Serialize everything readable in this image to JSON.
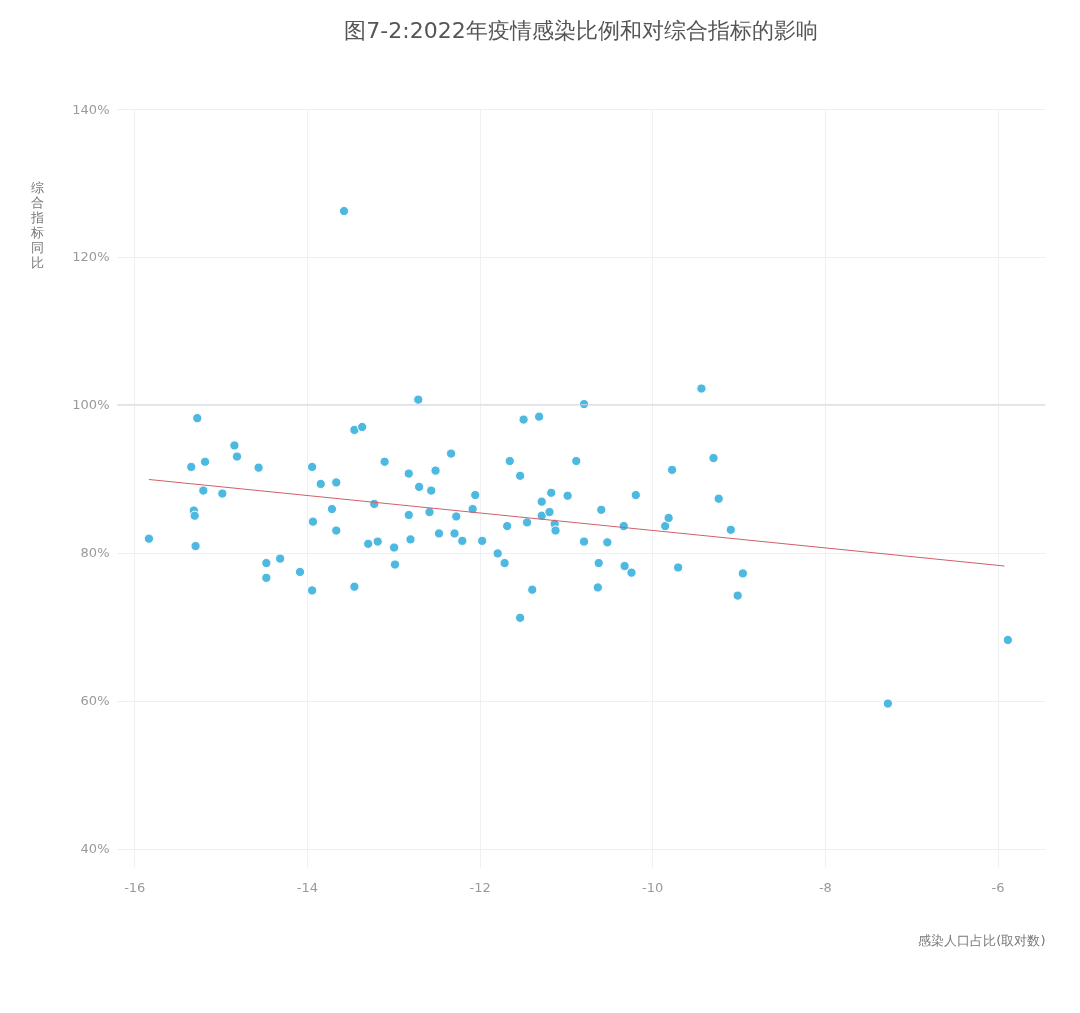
{
  "chart_data": {
    "type": "scatter",
    "title": "图7-2:2022年疫情感染比例和对综合指标的影响",
    "xlabel": "感染人口占比(取对数)",
    "ylabel": "综合指标同比",
    "xlim": [
      -16.2,
      -5.45
    ],
    "xticks": [
      -16,
      -14,
      -12,
      -10,
      -8,
      -6
    ],
    "ylim": [
      37.5,
      140
    ],
    "yticks": [
      {
        "value": 40,
        "label": "40%"
      },
      {
        "value": 60,
        "label": "60%"
      },
      {
        "value": 80,
        "label": "80%"
      },
      {
        "value": 100,
        "label": "100%"
      },
      {
        "value": 120,
        "label": "120%"
      },
      {
        "value": 140,
        "label": "140%"
      }
    ],
    "grid": true,
    "marker": "circle",
    "ref_lines": [
      {
        "axis": "y",
        "value": 100,
        "color": "#d4d6da"
      }
    ],
    "series": [
      {
        "color": "#4db8e0",
        "x": [
          -15.83,
          -15.34,
          -15.31,
          -15.3,
          -15.29,
          -15.27,
          -15.2,
          -15.18,
          -14.98,
          -14.84,
          -14.81,
          -14.56,
          -14.47,
          -14.47,
          -14.31,
          -14.08,
          -13.94,
          -13.93,
          -13.94,
          -13.84,
          -13.71,
          -13.66,
          -13.66,
          -13.57,
          -13.45,
          -13.45,
          -13.36,
          -13.29,
          -13.22,
          -13.18,
          -13.1,
          -12.99,
          -12.98,
          -12.82,
          -12.82,
          -12.8,
          -12.71,
          -12.7,
          -12.58,
          -12.56,
          -12.51,
          -12.47,
          -12.33,
          -12.29,
          -12.27,
          -12.2,
          -12.08,
          -12.05,
          -11.97,
          -11.79,
          -11.71,
          -11.68,
          -11.65,
          -11.53,
          -11.53,
          -11.49,
          -11.45,
          -11.39,
          -11.31,
          -11.28,
          -11.28,
          -11.19,
          -11.17,
          -11.13,
          -11.12,
          -10.98,
          -10.88,
          -10.79,
          -10.79,
          -10.62,
          -10.63,
          -10.59,
          -10.52,
          -10.33,
          -10.32,
          -10.24,
          -10.19,
          -9.85,
          -9.81,
          -9.77,
          -9.7,
          -9.43,
          -9.29,
          -9.23,
          -9.09,
          -9.01,
          -8.95,
          -7.27,
          -5.88
        ],
        "values": [
          81.9,
          91.6,
          85.7,
          85,
          80.9,
          98.2,
          88.4,
          92.3,
          88,
          94.5,
          93,
          91.5,
          78.6,
          76.6,
          79.2,
          77.4,
          91.6,
          84.2,
          74.9,
          89.3,
          85.9,
          89.5,
          83,
          126.2,
          96.6,
          75.4,
          97,
          81.2,
          86.6,
          81.5,
          92.3,
          80.7,
          78.4,
          90.7,
          85.1,
          81.8,
          100.7,
          88.9,
          85.5,
          88.4,
          91.1,
          82.6,
          93.4,
          82.6,
          84.9,
          81.6,
          85.9,
          87.8,
          81.6,
          79.9,
          78.6,
          83.6,
          92.4,
          90.4,
          71.2,
          98,
          84.1,
          75,
          98.4,
          86.9,
          85,
          85.5,
          88.1,
          83.9,
          83,
          87.7,
          92.4,
          100.1,
          81.5,
          78.6,
          75.3,
          85.8,
          81.4,
          83.6,
          78.2,
          77.3,
          87.8,
          83.6,
          84.7,
          91.2,
          78,
          102.2,
          92.8,
          87.3,
          83.1,
          74.2,
          77.2,
          59.6,
          68.2
        ]
      },
      {
        "type": "line",
        "marker": "none",
        "color": "#d0606a",
        "x": [
          -15.83,
          -5.92
        ],
        "values": [
          89.9,
          78.2
        ]
      }
    ]
  }
}
